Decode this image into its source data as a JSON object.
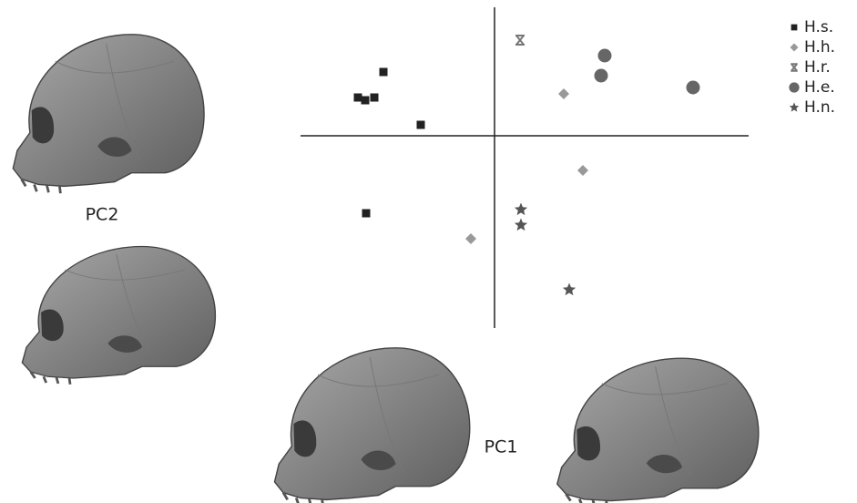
{
  "chart_data": {
    "type": "scatter",
    "x_label": "PC1",
    "y_label": "PC2",
    "xlim": [
      -2.13,
      2.79
    ],
    "ylim": [
      -2.11,
      1.41
    ],
    "legend": "top-right",
    "series": [
      {
        "name": "H.s.",
        "color": "#222222",
        "marker": "square",
        "x": [
          -1.22,
          -1.5,
          -1.42,
          -1.32,
          -0.81,
          -1.41
        ],
        "y": [
          0.7,
          0.42,
          0.39,
          0.42,
          0.12,
          -0.85
        ]
      },
      {
        "name": "H.h.",
        "color": "#999999",
        "marker": "diamond",
        "x": [
          0.76,
          0.97,
          -0.26
        ],
        "y": [
          0.46,
          -0.38,
          -1.13
        ]
      },
      {
        "name": "H.r.",
        "color": "#777777",
        "marker": "x",
        "x": [
          0.28
        ],
        "y": [
          1.05
        ]
      },
      {
        "name": "H.e.",
        "color": "#666666",
        "marker": "circle",
        "x": [
          1.21,
          1.17,
          2.18
        ],
        "y": [
          0.88,
          0.66,
          0.53
        ]
      },
      {
        "name": "H.n.",
        "color": "#555555",
        "marker": "star",
        "x": [
          0.29,
          0.29,
          0.82
        ],
        "y": [
          -0.81,
          -0.98,
          -1.69
        ]
      }
    ]
  }
}
